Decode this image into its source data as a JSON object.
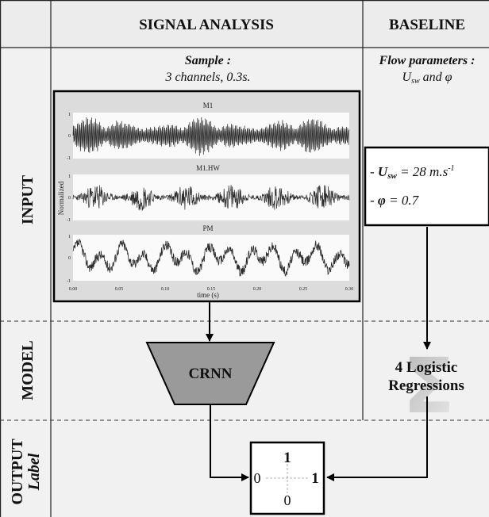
{
  "header": {
    "col_signal": "SIGNAL ANALYSIS",
    "col_baseline": "BASELINE"
  },
  "rows": {
    "input": "INPUT",
    "model": "MODEL",
    "output": "OUTPUT",
    "output_sub": "Label"
  },
  "signal": {
    "sample_title": "Sample :",
    "sample_desc": "3 channels, 0.3s.",
    "ylabel": "Normalized",
    "xlabel": "time (s)",
    "xticks": [
      "0.00",
      "0.05",
      "0.10",
      "0.15",
      "0.20",
      "0.25",
      "0.30"
    ],
    "yticks": [
      "1",
      "0",
      "-1"
    ],
    "channels": [
      {
        "name": "M1"
      },
      {
        "name": "M1.HW"
      },
      {
        "name": "PM"
      }
    ],
    "model_label": "CRNN"
  },
  "baseline": {
    "title": "Flow parameters :",
    "desc_pre": "U",
    "desc_sub": "sw",
    "desc_post": " and φ",
    "param1_prefix": "- ",
    "param1_sym": "U",
    "param1_sub": "sw",
    "param1_value": " = 28 m.s",
    "param1_sup": "-1",
    "param2_prefix": "- ",
    "param2_sym": "φ",
    "param2_value": " = 0.7",
    "sigma_glyph": "Σ",
    "model_line1": "4 Logistic",
    "model_line2": "Regressions"
  },
  "output": {
    "top": "1",
    "bottom": "0",
    "left": "0",
    "right": "1"
  },
  "colors": {
    "header_bg": "#ececec",
    "cell_bg": "#f1f1f1",
    "panel_bg": "#dcdcdc",
    "trap_fill": "#9a9a9a"
  }
}
